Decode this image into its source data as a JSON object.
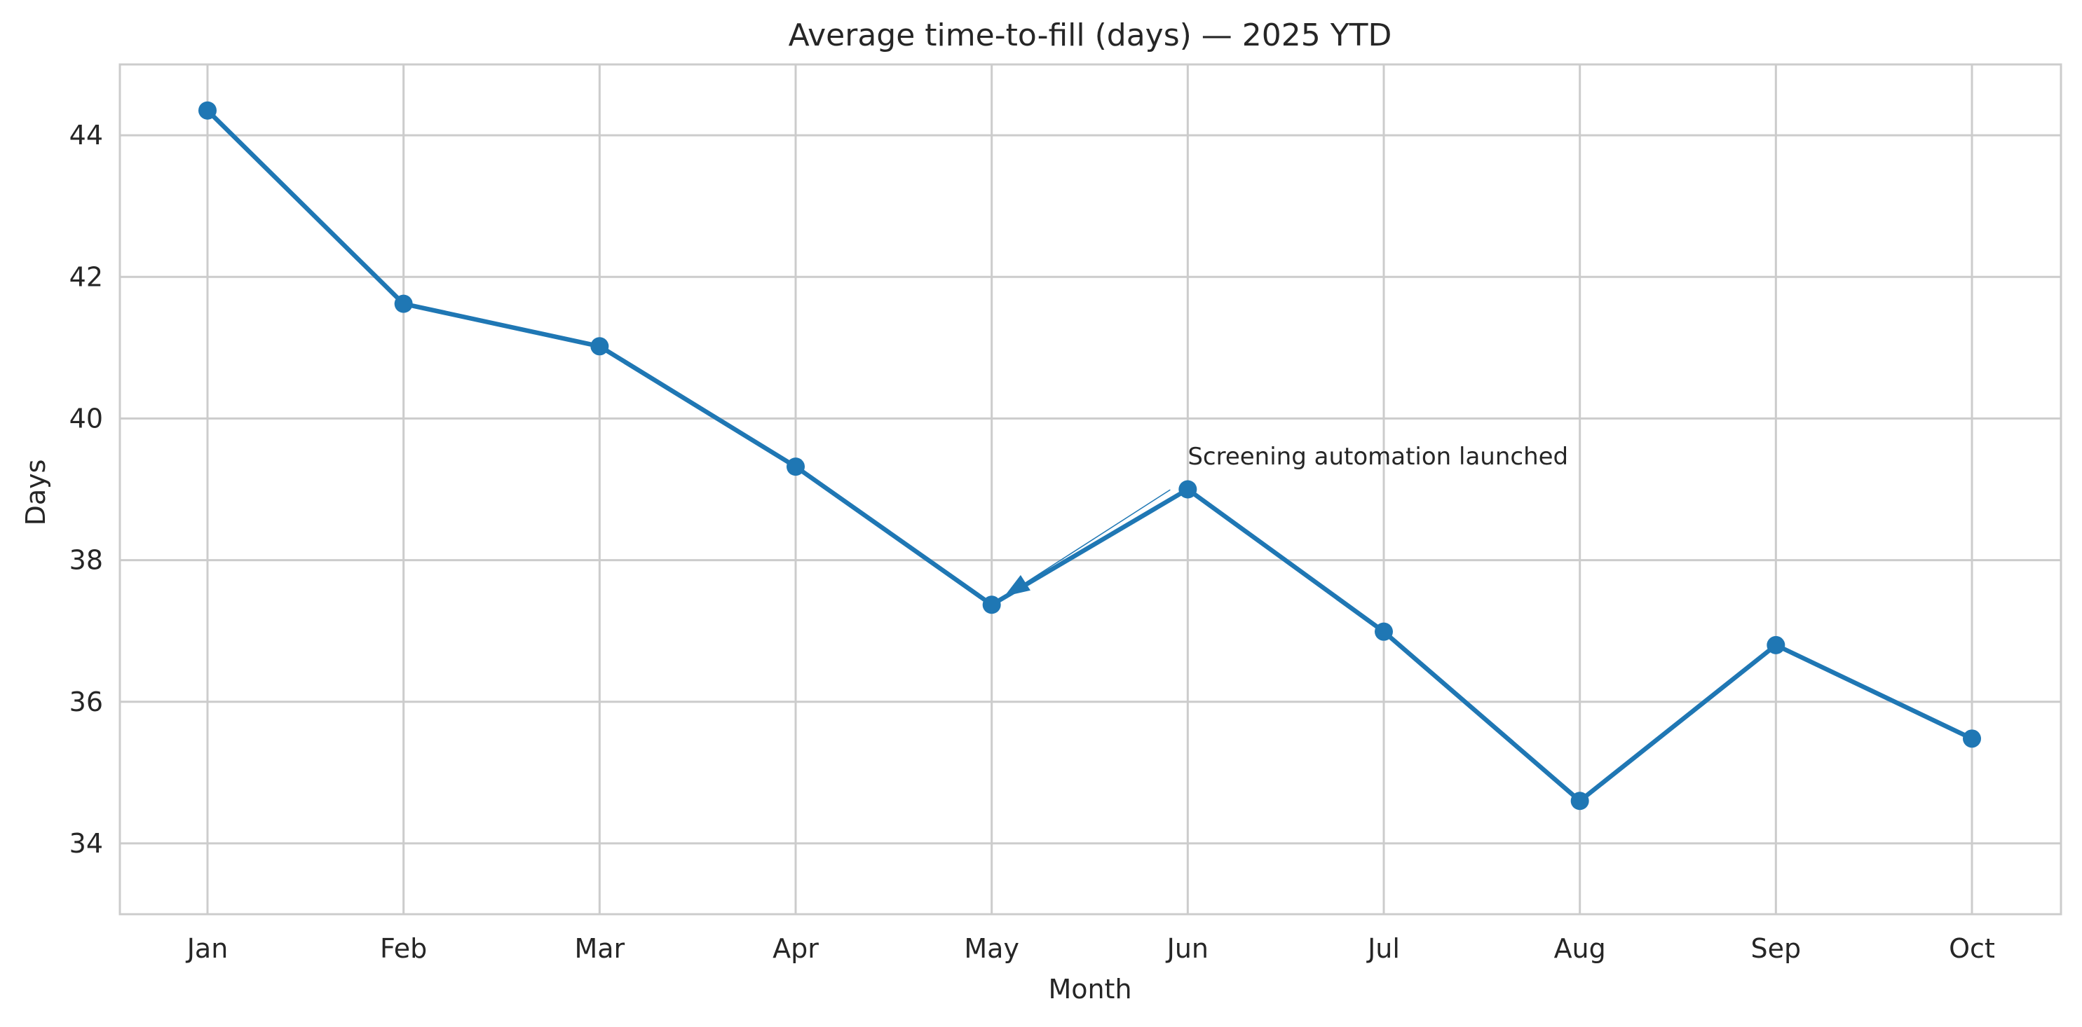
{
  "chart_data": {
    "type": "line",
    "title": "Average time-to-fill (days) — 2025 YTD",
    "xlabel": "Month",
    "ylabel": "Days",
    "categories": [
      "Jan",
      "Feb",
      "Mar",
      "Apr",
      "May",
      "Jun",
      "Jul",
      "Aug",
      "Sep",
      "Oct"
    ],
    "series": [
      {
        "values": [
          44.35,
          41.62,
          41.02,
          39.32,
          37.37,
          39.0,
          36.99,
          34.6,
          36.8,
          35.48
        ],
        "color": "#1f77b4"
      }
    ],
    "ylim": [
      33,
      45
    ],
    "yticks": [
      34,
      36,
      38,
      40,
      42,
      44
    ],
    "grid": true,
    "legend": "none",
    "annotation": {
      "text": "Screening automation launched",
      "target_category": "May",
      "target_value": 37.37,
      "text_category": "Jun",
      "text_value": 39.35
    },
    "colors": {
      "line": "#1f77b4",
      "grid": "#cccccc",
      "axes": "#cccccc",
      "text": "#262626"
    }
  }
}
